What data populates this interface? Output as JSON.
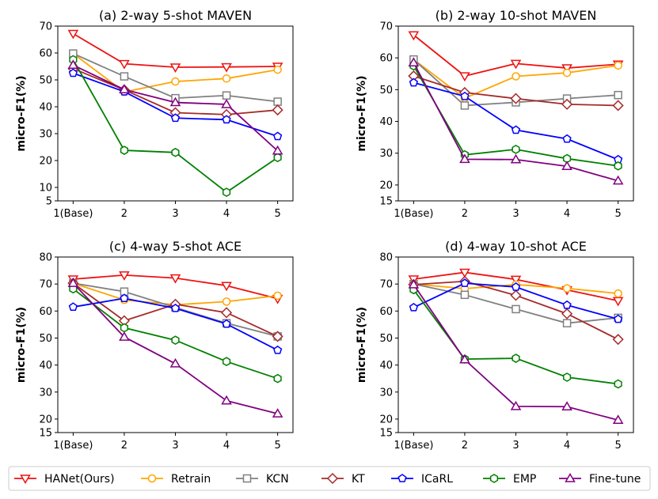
{
  "figure": {
    "x_tick_labels": [
      "1(Base)",
      "2",
      "3",
      "4",
      "5"
    ],
    "colors": {
      "HANet(Ours)": "#ee1111",
      "Retrain": "#ffa500",
      "KCN": "#808080",
      "KT": "#a52a2a",
      "ICaRL": "#0000ff",
      "EMP": "#008000",
      "Fine-tune": "#800080"
    },
    "markers": {
      "HANet(Ours)": "triangle-down",
      "Retrain": "circle",
      "KCN": "square",
      "KT": "diamond",
      "ICaRL": "pentagon",
      "EMP": "hexagon",
      "Fine-tune": "triangle-up"
    }
  },
  "legend": {
    "entries": [
      "HANet(Ours)",
      "Retrain",
      "KCN",
      "KT",
      "ICaRL",
      "EMP",
      "Fine-tune"
    ]
  },
  "chart_data": [
    {
      "type": "line",
      "title": "(a) 2-way 5-shot MAVEN",
      "xlabel": "",
      "ylabel": "micro-F1(%)",
      "categories": [
        "1(Base)",
        "2",
        "3",
        "4",
        "5"
      ],
      "ylim": [
        5,
        70
      ],
      "yticks": [
        5,
        10,
        20,
        30,
        40,
        50,
        60,
        70
      ],
      "series": [
        {
          "name": "HANet(Ours)",
          "values": [
            67.2,
            56.0,
            54.7,
            54.8,
            55.0
          ]
        },
        {
          "name": "Retrain",
          "values": [
            59.8,
            45.5,
            49.4,
            50.5,
            53.8
          ]
        },
        {
          "name": "KCN",
          "values": [
            59.8,
            51.3,
            43.2,
            44.2,
            41.9
          ]
        },
        {
          "name": "KT",
          "values": [
            54.2,
            46.3,
            37.8,
            37.1,
            38.8
          ]
        },
        {
          "name": "ICaRL",
          "values": [
            52.5,
            45.6,
            35.8,
            35.2,
            29.0
          ]
        },
        {
          "name": "EMP",
          "values": [
            57.5,
            23.8,
            23.0,
            8.2,
            21.1
          ]
        },
        {
          "name": "Fine-tune",
          "values": [
            55.5,
            46.4,
            41.6,
            40.9,
            23.6
          ]
        }
      ]
    },
    {
      "type": "line",
      "title": "(b) 2-way 10-shot MAVEN",
      "xlabel": "",
      "ylabel": "micro-F1(%)",
      "categories": [
        "1(Base)",
        "2",
        "3",
        "4",
        "5"
      ],
      "ylim": [
        15,
        70
      ],
      "yticks": [
        15,
        20,
        30,
        40,
        50,
        60,
        70
      ],
      "series": [
        {
          "name": "HANet(Ours)",
          "values": [
            67.2,
            54.3,
            58.2,
            56.8,
            58.0
          ]
        },
        {
          "name": "Retrain",
          "values": [
            59.5,
            47.3,
            54.2,
            55.3,
            57.6
          ]
        },
        {
          "name": "KCN",
          "values": [
            59.5,
            45.0,
            46.0,
            47.2,
            48.3
          ]
        },
        {
          "name": "KT",
          "values": [
            54.3,
            49.1,
            47.2,
            45.4,
            45.0
          ]
        },
        {
          "name": "ICaRL",
          "values": [
            52.2,
            47.9,
            37.3,
            34.5,
            28.0
          ]
        },
        {
          "name": "EMP",
          "values": [
            57.5,
            29.5,
            31.2,
            28.3,
            26.0
          ]
        },
        {
          "name": "Fine-tune",
          "values": [
            58.5,
            28.1,
            28.0,
            25.9,
            21.3
          ]
        }
      ]
    },
    {
      "type": "line",
      "title": "(c) 4-way 5-shot ACE",
      "xlabel": "",
      "ylabel": "micro-F1(%)",
      "categories": [
        "1(Base)",
        "2",
        "3",
        "4",
        "5"
      ],
      "ylim": [
        15,
        80
      ],
      "yticks": [
        15,
        20,
        30,
        40,
        50,
        60,
        70,
        80
      ],
      "series": [
        {
          "name": "HANet(Ours)",
          "values": [
            71.8,
            73.3,
            72.2,
            69.4,
            64.6
          ]
        },
        {
          "name": "Retrain",
          "values": [
            70.3,
            64.1,
            62.3,
            63.5,
            65.7
          ]
        },
        {
          "name": "KCN",
          "values": [
            70.3,
            67.2,
            61.3,
            55.5,
            50.6
          ]
        },
        {
          "name": "KT",
          "values": [
            70.3,
            56.4,
            62.5,
            59.4,
            50.6
          ]
        },
        {
          "name": "ICaRL",
          "values": [
            61.5,
            64.7,
            61.0,
            55.2,
            45.5
          ]
        },
        {
          "name": "EMP",
          "values": [
            68.2,
            53.8,
            49.2,
            41.3,
            35.0
          ]
        },
        {
          "name": "Fine-tune",
          "values": [
            70.3,
            50.4,
            40.5,
            26.8,
            22.0
          ]
        }
      ]
    },
    {
      "type": "line",
      "title": "(d) 4-way 10-shot ACE",
      "xlabel": "",
      "ylabel": "micro-F1(%)",
      "categories": [
        "1(Base)",
        "2",
        "3",
        "4",
        "5"
      ],
      "ylim": [
        15,
        80
      ],
      "yticks": [
        15,
        20,
        30,
        40,
        50,
        60,
        70,
        80
      ],
      "series": [
        {
          "name": "HANet(Ours)",
          "values": [
            71.8,
            74.3,
            71.7,
            67.8,
            63.8
          ]
        },
        {
          "name": "Retrain",
          "values": [
            70.0,
            68.3,
            69.8,
            68.4,
            66.5
          ]
        },
        {
          "name": "KCN",
          "values": [
            70.0,
            66.0,
            60.7,
            55.5,
            57.5
          ]
        },
        {
          "name": "KT",
          "values": [
            69.8,
            71.0,
            65.8,
            59.0,
            49.5
          ]
        },
        {
          "name": "ICaRL",
          "values": [
            61.3,
            70.3,
            68.9,
            62.2,
            57.0
          ]
        },
        {
          "name": "EMP",
          "values": [
            67.9,
            42.2,
            42.5,
            35.5,
            33.0
          ]
        },
        {
          "name": "Fine-tune",
          "values": [
            69.8,
            42.0,
            24.7,
            24.6,
            19.6
          ]
        }
      ]
    }
  ]
}
